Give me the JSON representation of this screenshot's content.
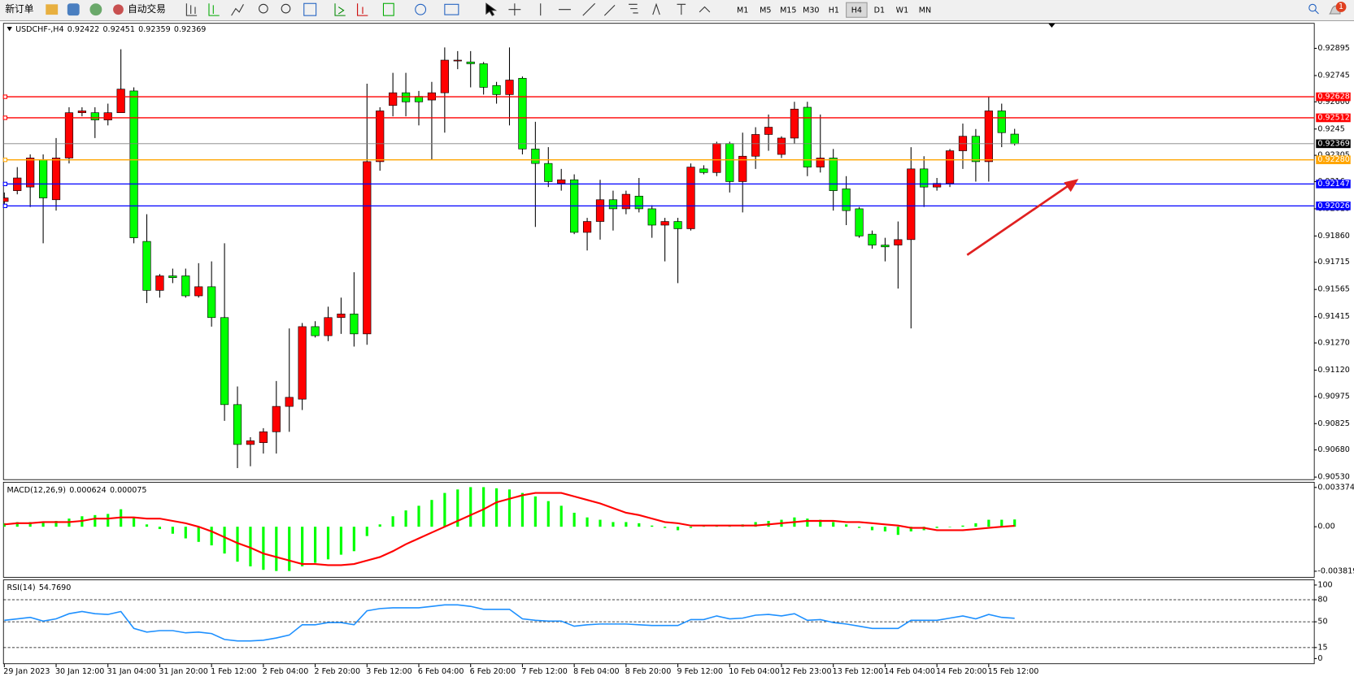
{
  "toolbar": {
    "new_order": "新订单",
    "auto_trading": "自动交易",
    "timeframes": [
      "M1",
      "M5",
      "M15",
      "M30",
      "H1",
      "H4",
      "D1",
      "W1",
      "MN"
    ],
    "selected_timeframe": "H4",
    "notification_count": 1
  },
  "chart_data": {
    "type": "candlestick",
    "symbol": "USDCHF-,H4",
    "categories": [
      "29 Jan 2023",
      null,
      null,
      null,
      "30 Jan 12:00",
      null,
      null,
      null,
      "31 Jan 04:00",
      null,
      null,
      null,
      "31 Jan 20:00",
      null,
      null,
      null,
      "1 Feb 12:00",
      null,
      null,
      null,
      "2 Feb 04:00",
      null,
      null,
      null,
      "2 Feb 20:00",
      null,
      null,
      null,
      "3 Feb 12:00",
      null,
      null,
      null,
      "6 Feb 04:00",
      null,
      null,
      null,
      "6 Feb 20:00",
      null,
      null,
      null,
      "7 Feb 12:00",
      null,
      null,
      null,
      "8 Feb 04:00",
      null,
      null,
      null,
      "8 Feb 20:00",
      null,
      null,
      null,
      "9 Feb 12:00",
      null,
      null,
      null,
      "10 Feb 04:00",
      null,
      null,
      null,
      "12 Feb 23:00",
      null,
      null,
      null,
      "13 Feb 12:00",
      null,
      null,
      null,
      "14 Feb 04:00",
      null,
      null,
      null,
      "14 Feb 20:00",
      null,
      null,
      null,
      "15 Feb 12:00",
      null,
      null
    ],
    "open": [
      0.9205,
      0.9211,
      0.9213,
      0.9228,
      0.9206,
      0.9229,
      0.9254,
      0.9254,
      0.925,
      0.9254,
      0.9266,
      0.9183,
      0.9156,
      0.9164,
      0.9164,
      0.9153,
      0.9158,
      0.9141,
      0.9093,
      0.9071,
      0.9072,
      0.9078,
      0.9092,
      0.9096,
      0.9136,
      0.9131,
      0.9141,
      0.9143,
      0.9132,
      0.9227,
      0.9258,
      0.9265,
      0.9263,
      0.9261,
      0.9265,
      0.9283,
      0.9282,
      0.9281,
      0.9269,
      0.9264,
      0.9273,
      0.9234,
      0.9226,
      0.9215,
      0.9217,
      0.9188,
      0.9194,
      0.9206,
      0.9201,
      0.9208,
      0.9201,
      0.9192,
      0.9194,
      0.919,
      0.9223,
      0.9221,
      0.9237,
      0.9216,
      0.923,
      0.9242,
      0.9231,
      0.924,
      0.9257,
      0.9224,
      0.9229,
      0.9212,
      0.9201,
      0.9187,
      0.9181,
      0.9181,
      0.9184,
      0.9223,
      0.9213,
      0.9215,
      0.9233,
      0.9241,
      0.9227,
      0.9255,
      0.92422
    ],
    "high": [
      0.921,
      0.9224,
      0.9231,
      0.9231,
      0.924,
      0.9257,
      0.9257,
      0.9257,
      0.9259,
      0.9289,
      0.9268,
      0.9198,
      0.9165,
      0.9168,
      0.9168,
      0.9171,
      0.9172,
      0.9182,
      0.9103,
      0.9075,
      0.908,
      0.9106,
      0.9135,
      0.9138,
      0.9139,
      0.9147,
      0.9152,
      0.9166,
      0.927,
      0.9257,
      0.9276,
      0.9276,
      0.9266,
      0.9271,
      0.929,
      0.9288,
      0.9288,
      0.9282,
      0.9271,
      0.929,
      0.9274,
      0.9249,
      0.9235,
      0.9223,
      0.922,
      0.9196,
      0.9217,
      0.9211,
      0.9211,
      0.9218,
      0.9203,
      0.9196,
      0.9196,
      0.9226,
      0.9225,
      0.9238,
      0.9238,
      0.9243,
      0.9246,
      0.9253,
      0.9241,
      0.926,
      0.926,
      0.9253,
      0.9234,
      0.9219,
      0.9202,
      0.9189,
      0.9185,
      0.9194,
      0.9235,
      0.923,
      0.9218,
      0.9234,
      0.9248,
      0.9245,
      0.9263,
      0.9259,
      0.92451
    ],
    "low": [
      0.9202,
      0.9209,
      0.9202,
      0.9182,
      0.92,
      0.9226,
      0.9252,
      0.924,
      0.9247,
      0.9254,
      0.9182,
      0.9149,
      0.9152,
      0.916,
      0.9152,
      0.9152,
      0.9136,
      0.9084,
      0.9058,
      0.9059,
      0.9066,
      0.9066,
      0.9078,
      0.909,
      0.913,
      0.9128,
      0.9132,
      0.9125,
      0.9126,
      0.9222,
      0.9252,
      0.9252,
      0.9247,
      0.9228,
      0.9243,
      0.9278,
      0.9268,
      0.9264,
      0.9259,
      0.9247,
      0.9231,
      0.9191,
      0.9213,
      0.9211,
      0.9187,
      0.9178,
      0.9184,
      0.9189,
      0.9198,
      0.9199,
      0.9185,
      0.9172,
      0.916,
      0.9189,
      0.922,
      0.9219,
      0.921,
      0.9199,
      0.9223,
      0.9233,
      0.9229,
      0.9237,
      0.9219,
      0.9221,
      0.92,
      0.9192,
      0.9185,
      0.9179,
      0.9172,
      0.9157,
      0.9135,
      0.9202,
      0.9211,
      0.9213,
      0.9223,
      0.9216,
      0.9216,
      0.9235,
      0.92359
    ],
    "close": [
      0.9207,
      0.9218,
      0.9229,
      0.9207,
      0.9229,
      0.9254,
      0.9255,
      0.925,
      0.9254,
      0.9267,
      0.9185,
      0.9156,
      0.9164,
      0.9163,
      0.9153,
      0.9158,
      0.9141,
      0.9093,
      0.9071,
      0.9073,
      0.9078,
      0.9092,
      0.9097,
      0.9136,
      0.9131,
      0.9141,
      0.9143,
      0.9132,
      0.9227,
      0.9255,
      0.9265,
      0.926,
      0.926,
      0.9265,
      0.9283,
      0.9283,
      0.9281,
      0.9268,
      0.9264,
      0.9272,
      0.9234,
      0.9226,
      0.9216,
      0.9217,
      0.9188,
      0.9194,
      0.9206,
      0.9201,
      0.9209,
      0.9201,
      0.9192,
      0.9194,
      0.919,
      0.9224,
      0.9221,
      0.9237,
      0.9216,
      0.923,
      0.9242,
      0.9246,
      0.924,
      0.9256,
      0.9224,
      0.9229,
      0.9211,
      0.92,
      0.9186,
      0.9181,
      0.918,
      0.9184,
      0.9223,
      0.9213,
      0.9215,
      0.9233,
      0.9241,
      0.9227,
      0.9255,
      0.9243,
      0.92369
    ],
    "up_color": "#ff0000",
    "down_color": "#00ff00",
    "price_line_color": "#808080",
    "ylim": [
      0.90516,
      0.93033
    ],
    "yticks": [
      0.92895,
      0.92745,
      {
        "value": 0.926,
        "label": "0.92600"
      },
      0.9245,
      0.92305,
      0.9216,
      {
        "value": 0.9201,
        "label": "0.92010"
      },
      {
        "value": 0.9186,
        "label": "0.91860"
      },
      0.91715,
      0.91565,
      0.91415,
      {
        "value": 0.9127,
        "label": "0.91270"
      },
      {
        "value": 0.9112,
        "label": "0.91120"
      },
      0.90975,
      0.90825,
      {
        "value": 0.9068,
        "label": "0.90680"
      },
      {
        "value": 0.9053,
        "label": "0.90530"
      }
    ],
    "levels": [
      {
        "value": 0.92628,
        "color": "#ff0000"
      },
      {
        "value": 0.92512,
        "color": "#ff0000"
      },
      {
        "value": {
          "value": 0.9228,
          "label": "0.92280"
        },
        "color": "#ffa500"
      },
      {
        "value": 0.92147,
        "color": "#0000ff"
      },
      {
        "value": 0.92026,
        "color": "#0000ff"
      }
    ]
  },
  "macd": {
    "type": "macd",
    "label": "MACD(12,26,9)",
    "main": [
      0.0003,
      0.0004,
      0.0004,
      0.0004,
      0.0005,
      0.0007,
      0.0009,
      0.001,
      0.0011,
      0.0015,
      0.0008,
      0.0002,
      -0.0002,
      -0.0006,
      -0.001,
      -0.0013,
      -0.0016,
      -0.0023,
      -0.003,
      -0.0034,
      -0.0037,
      -0.0038,
      -0.0038,
      -0.0034,
      -0.0031,
      -0.0028,
      -0.0024,
      -0.0021,
      -0.0008,
      0.0002,
      0.0009,
      0.0014,
      0.0018,
      0.0023,
      0.0029,
      0.0032,
      0.0034,
      0.0034,
      0.0033,
      0.0032,
      0.0029,
      0.0026,
      0.0022,
      0.0018,
      0.0012,
      0.0008,
      0.0006,
      0.0004,
      0.0004,
      0.0003,
      0.0001,
      -0.0001,
      -0.0003,
      -0.0001,
      0.0001,
      0.0001,
      0.0001,
      0.0002,
      0.0004,
      0.0005,
      0.0006,
      0.0008,
      0.0007,
      0.0006,
      0.0004,
      0.0002,
      -0.0001,
      -0.0003,
      -0.0004,
      -0.0007,
      -0.0004,
      -0.0003,
      -0.0001,
      0,
      0.0001,
      0.0003,
      0.0006,
      0.0006,
      0.000624
    ],
    "signal": [
      0.0002,
      0.0003,
      0.0003,
      0.0004,
      0.0004,
      0.0004,
      0.0005,
      0.0007,
      0.0007,
      0.0008,
      0.0008,
      0.0007,
      0.0007,
      0.0005,
      0.0003,
      0,
      -0.0004,
      -0.0009,
      -0.0014,
      -0.0018,
      -0.0023,
      -0.0026,
      -0.0029,
      -0.0032,
      -0.0032,
      -0.0033,
      -0.0033,
      -0.0032,
      -0.0029,
      -0.0026,
      -0.0021,
      -0.0015,
      -0.001,
      -0.0005,
      0,
      0.0005,
      0.001,
      0.0015,
      0.0021,
      0.0024,
      0.0027,
      0.0029,
      0.0029,
      0.0029,
      0.0026,
      0.0023,
      0.002,
      0.0016,
      0.0012,
      0.001,
      0.0007,
      0.0004,
      0.0003,
      0.0001,
      0.0001,
      0.0001,
      0.0001,
      0.0001,
      0.0001,
      0.0002,
      0.0003,
      0.0004,
      0.0005,
      0.0005,
      0.0005,
      0.0004,
      0.0004,
      0.0003,
      0.0002,
      0.0001,
      -0.0001,
      -0.0001,
      -0.0003,
      -0.0003,
      -0.0003,
      -0.0002,
      -0.0001,
      0,
      7.5e-05
    ],
    "hist_color": "#00ff00",
    "signal_color": "#ff0000",
    "ylim": [
      -0.00434,
      0.00382
    ],
    "yticks": [
      0.003374,
      {
        "value": 0,
        "label": "0.00"
      },
      -0.003819
    ]
  },
  "rsi": {
    "type": "line",
    "label": "RSI(14)",
    "current": {
      "value": 54.769,
      "label": "54.7690"
    },
    "values": [
      52,
      54,
      56,
      51,
      54,
      61,
      64,
      61,
      60,
      64,
      41,
      36,
      38,
      38,
      35,
      36,
      34,
      26,
      24,
      24,
      25,
      28,
      32,
      46,
      46,
      49,
      49,
      46,
      65,
      68,
      69,
      69,
      69,
      71,
      73,
      73,
      71,
      67,
      67,
      67,
      54,
      52,
      51,
      51,
      44,
      46,
      47,
      47,
      47,
      46,
      45,
      45,
      45,
      53,
      53,
      58,
      54,
      55,
      59,
      60,
      58,
      61,
      52,
      53,
      49,
      47,
      44,
      41,
      41,
      41,
      52,
      52,
      52,
      55,
      58,
      54,
      60,
      56,
      54.769
    ],
    "color": "#1e90ff",
    "ylim": [
      -7,
      107
    ],
    "yticks": [
      100,
      80,
      50,
      15,
      0
    ],
    "levels": [
      80,
      50,
      15
    ]
  }
}
